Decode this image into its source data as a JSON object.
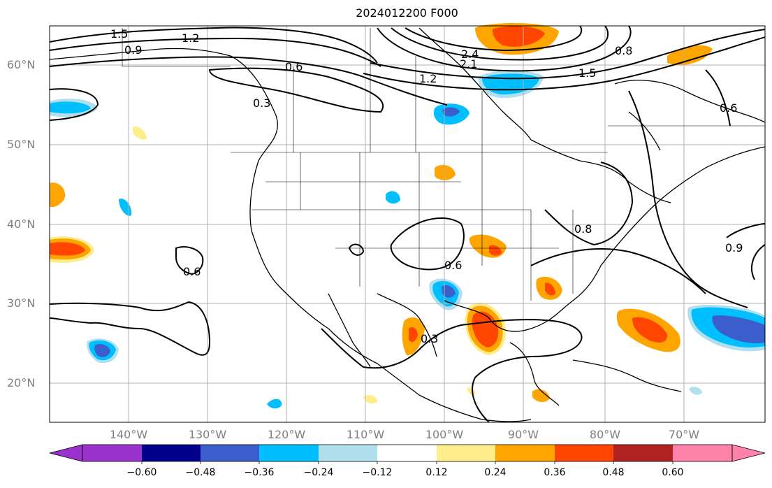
{
  "title": "2024012200 F000",
  "axes": {
    "lat_labels": [
      "60°N",
      "50°N",
      "40°N",
      "30°N",
      "20°N"
    ],
    "lon_labels": [
      "140°W",
      "130°W",
      "120°W",
      "110°W",
      "100°W",
      "90°W",
      "80°W",
      "70°W"
    ]
  },
  "contour_labels": [
    "1.5",
    "1.2",
    "0.9",
    "0.6",
    "0.3",
    "2.4",
    "2.1",
    "1.2",
    "1.5",
    "0.8",
    "0.6",
    "0.6",
    "0.8",
    "0.9",
    "0.3",
    "0.6"
  ],
  "colorbar": {
    "ticks": [
      "−0.60",
      "−0.48",
      "−0.36",
      "−0.24",
      "−0.12",
      "0.12",
      "0.24",
      "0.36",
      "0.48",
      "0.60"
    ],
    "colors": [
      "#9a32cd",
      "#00008b",
      "#3a5fcd",
      "#00bfff",
      "#b2dfee",
      "#ffffff",
      "#ffec8b",
      "#ffa500",
      "#ff4500",
      "#b22222",
      "#ff82ab"
    ]
  }
}
